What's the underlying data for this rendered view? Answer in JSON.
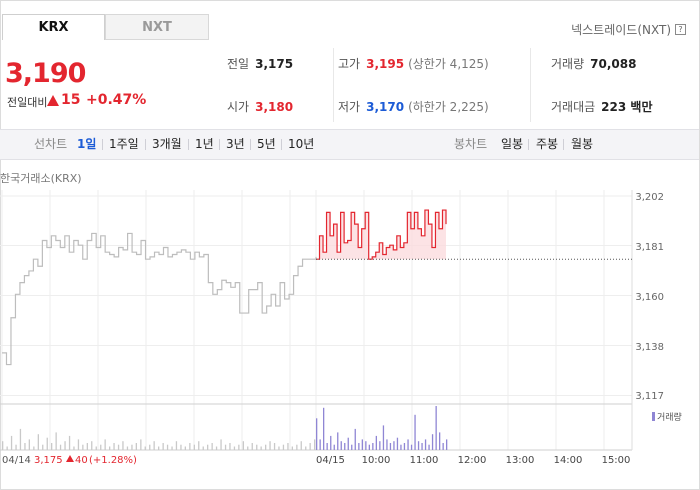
{
  "tabs": {
    "krx": "KRX",
    "nxt": "NXT"
  },
  "nxt_link": "넥스트레이드(NXT)",
  "help_icon": "?",
  "price": "3,190",
  "change": {
    "label": "전일대비",
    "amount": "15",
    "pct": "+0.47%"
  },
  "stats": {
    "prev_label": "전일",
    "prev": "3,175",
    "open_label": "시가",
    "open": "3,180",
    "high_label": "고가",
    "high": "3,195",
    "upper_label": "(상한가 4,125)",
    "low_label": "저가",
    "low": "3,170",
    "lower_label": "(하한가 2,225)",
    "volume_label": "거래량",
    "volume": "70,088",
    "amount_label": "거래대금",
    "amount": "223 백만"
  },
  "periods": {
    "line_label": "선차트",
    "line": [
      "1일",
      "1주일",
      "3개월",
      "1년",
      "3년",
      "5년",
      "10년"
    ],
    "candle_label": "봉차트",
    "candle": [
      "일봉",
      "주봉",
      "월봉"
    ]
  },
  "source_label": "한국거래소(KRX)",
  "colors": {
    "up": "#e3262f",
    "down": "#1c5bd6",
    "selected": "#1c5bd6",
    "prev_line": "#bdbdbd",
    "volume": "#8f86d4"
  },
  "chart_data": {
    "type": "line",
    "yticks": [
      "3,202",
      "3,181",
      "3,160",
      "3,138",
      "3,117"
    ],
    "ylim": [
      3117,
      3202
    ],
    "xticks": [
      "04/15",
      "10:00",
      "11:00",
      "12:00",
      "13:00",
      "14:00",
      "15:00"
    ],
    "prev_close": 3175,
    "prev_day_note": {
      "date": "04/14",
      "close": "3,175",
      "change": "40",
      "pct": "(+1.28%)"
    },
    "volume_legend": "거래량",
    "prev_day_series": [
      3135,
      3130,
      3150,
      3160,
      3165,
      3168,
      3170,
      3175,
      3172,
      3183,
      3180,
      3185,
      3183,
      3180,
      3185,
      3178,
      3183,
      3181,
      3175,
      3183,
      3186,
      3180,
      3185,
      3178,
      3177,
      3176,
      3180,
      3179,
      3186,
      3178,
      3177,
      3183,
      3175,
      3176,
      3178,
      3177,
      3180,
      3176,
      3177,
      3178,
      3179,
      3178,
      3175,
      3178,
      3176,
      3177,
      3165,
      3160,
      3162,
      3166,
      3165,
      3163,
      3165,
      3152,
      3152,
      3162,
      3162,
      3165,
      3152,
      3155,
      3160,
      3155,
      3165,
      3158,
      3160,
      3168,
      3172,
      3175,
      3175,
      3175,
      3176
    ],
    "today_series": [
      3175,
      3185,
      3178,
      3195,
      3185,
      3190,
      3178,
      3195,
      3182,
      3183,
      3195,
      3190,
      3180,
      3188,
      3195,
      3175,
      3176,
      3178,
      3182,
      3177,
      3180,
      3181,
      3179,
      3185,
      3180,
      3182,
      3195,
      3188,
      3195,
      3188,
      3185,
      3196,
      3190,
      3180,
      3195,
      3188,
      3196,
      3190
    ],
    "prev_day_volume": [
      5,
      2,
      8,
      3,
      12,
      4,
      6,
      2,
      9,
      3,
      7,
      4,
      10,
      3,
      5,
      8,
      2,
      6,
      3,
      4,
      5,
      2,
      3,
      6,
      2,
      4,
      3,
      5,
      2,
      3,
      4,
      6,
      2,
      3,
      5,
      2,
      4,
      3,
      2,
      5,
      3,
      2,
      4,
      3,
      5,
      2,
      3,
      4,
      2,
      6,
      3,
      4,
      2,
      3,
      5,
      2,
      4,
      3,
      2,
      3,
      5,
      4,
      2,
      3,
      4,
      2,
      3,
      5,
      2,
      4,
      6
    ],
    "today_volume": [
      18,
      6,
      24,
      4,
      8,
      3,
      10,
      5,
      4,
      7,
      3,
      12,
      4,
      6,
      5,
      3,
      4,
      8,
      5,
      14,
      6,
      4,
      5,
      7,
      3,
      4,
      6,
      3,
      20,
      5,
      4,
      6,
      3,
      9,
      25,
      10,
      4,
      6
    ]
  }
}
